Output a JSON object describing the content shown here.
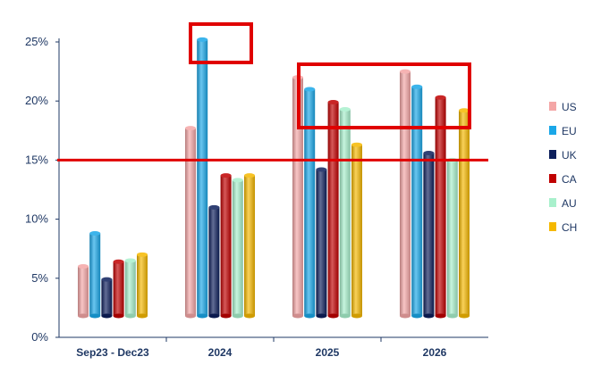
{
  "chart_data": {
    "type": "bar",
    "categories": [
      "Sep23 - Dec23",
      "2024",
      "2025",
      "2026"
    ],
    "series": [
      {
        "name": "US",
        "color": "#f4a6a6",
        "values": [
          6,
          17.7,
          22,
          22.5
        ]
      },
      {
        "name": "EU",
        "color": "#1aa7e8",
        "values": [
          8.8,
          25.2,
          21,
          21.2
        ]
      },
      {
        "name": "UK",
        "color": "#0d1f5c",
        "values": [
          4.9,
          11,
          14.2,
          15.6
        ]
      },
      {
        "name": "CA",
        "color": "#c00000",
        "values": [
          6.4,
          13.7,
          19.9,
          20.3
        ]
      },
      {
        "name": "AU",
        "color": "#a8f0cc",
        "values": [
          6.5,
          13.3,
          19.3,
          15
        ]
      },
      {
        "name": "CH",
        "color": "#f5b800",
        "values": [
          7,
          13.7,
          16.3,
          19.2
        ]
      }
    ],
    "ylim": [
      0,
      25
    ],
    "yticks": [
      "0%",
      "5%",
      "10%",
      "15%",
      "20%",
      "25%"
    ],
    "reference_line": {
      "value": 15,
      "color": "#e00000"
    },
    "highlight_color": "#e00000",
    "legend": "right"
  }
}
